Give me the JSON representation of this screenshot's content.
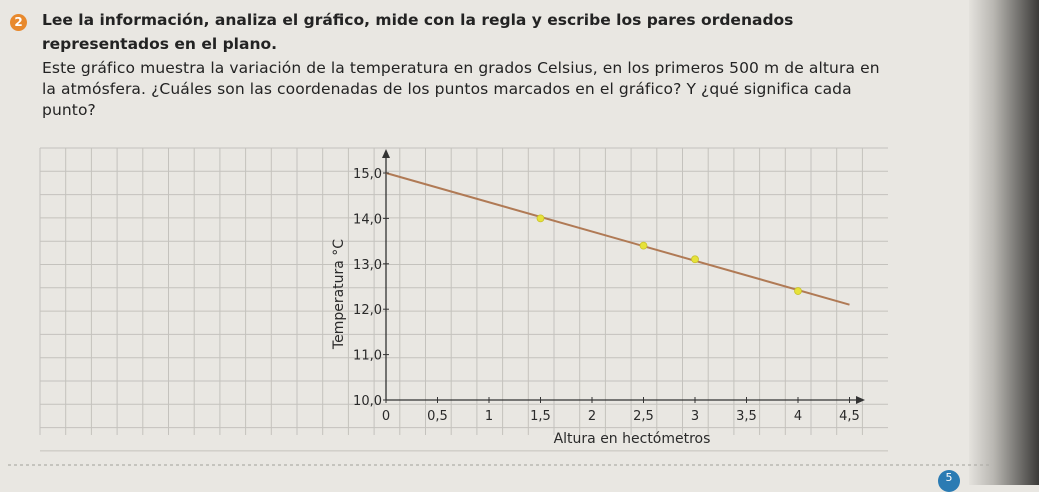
{
  "exercise": {
    "number": "2",
    "instruction": "Lee la información, analiza el gráfico, mide con la regla y escribe los pares ordenados representados en el plano.",
    "paragraph": "Este gráfico muestra la variación de la temperatura en grados Celsius, en los primeros 500 m de altura en la atmósfera. ¿Cuáles son las coordenadas de los puntos marcados en el gráfico? Y ¿qué significa cada punto?"
  },
  "page_number": "5",
  "colors": {
    "line": "#b07a55",
    "marker": "#e6e23a",
    "grid": "#c4c2bd",
    "xlabel": "#b84e7c",
    "badge": "#e8892d"
  },
  "chart_data": {
    "type": "line",
    "xlabel": "Altura en hectómetros",
    "ylabel": "Temperatura °C",
    "x_ticks": [
      "0",
      "0,5",
      "1",
      "1,5",
      "2",
      "2,5",
      "3",
      "3,5",
      "4",
      "4,5"
    ],
    "y_ticks": [
      "10,0",
      "11,0",
      "12,0",
      "13,0",
      "14,0",
      "15,0"
    ],
    "xlim": [
      0,
      4.5
    ],
    "ylim": [
      10,
      15
    ],
    "grid": true,
    "line": {
      "x": [
        0,
        4.5
      ],
      "y": [
        15.0,
        12.1
      ]
    },
    "marked_points": [
      {
        "x": 1.5,
        "y": 14.0
      },
      {
        "x": 2.5,
        "y": 13.4
      },
      {
        "x": 3.0,
        "y": 13.1
      },
      {
        "x": 4.0,
        "y": 12.4
      }
    ]
  }
}
